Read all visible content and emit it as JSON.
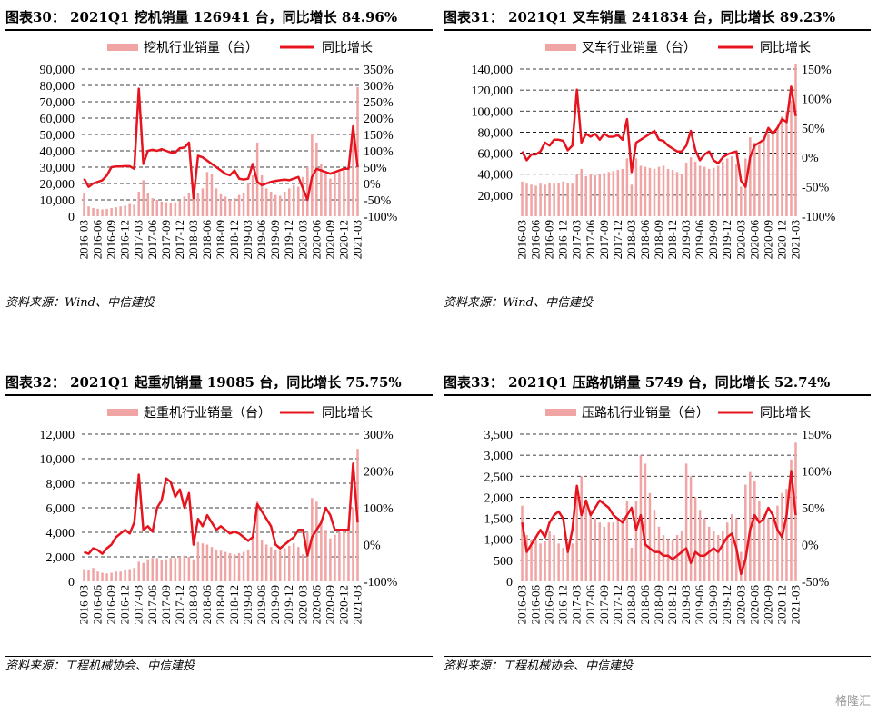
{
  "charts": [
    {
      "title": "图表30： 2021Q1 挖机销量 126941 台，同比增长 84.96%",
      "source": "资料来源：Wind、中信建投",
      "chart_data": {
        "type": "bar-line",
        "left_axis": {
          "min": 0,
          "max": 90000,
          "ticks": [
            "0",
            "10,000",
            "20,000",
            "30,000",
            "40,000",
            "50,000",
            "60,000",
            "70,000",
            "80,000",
            "90,000"
          ]
        },
        "right_axis": {
          "min": -100,
          "max": 350,
          "ticks": [
            "-100%",
            "-50%",
            "0%",
            "50%",
            "100%",
            "150%",
            "200%",
            "250%",
            "300%",
            "350%"
          ]
        },
        "x_labels": [
          "2016-03",
          "2016-06",
          "2016-09",
          "2016-12",
          "2017-03",
          "2017-06",
          "2017-09",
          "2017-12",
          "2018-03",
          "2018-06",
          "2018-09",
          "2018-12",
          "2019-03",
          "2019-06",
          "2019-09",
          "2019-12",
          "2020-03",
          "2020-06",
          "2020-09",
          "2020-12",
          "2021-03"
        ],
        "series": [
          {
            "name": "挖机行业销量（台）",
            "kind": "bar",
            "color": "#f0a4a4",
            "values": [
              14000,
              6000,
              5000,
              4500,
              4200,
              4500,
              5000,
              5500,
              6000,
              6500,
              7500,
              7000,
              15000,
              22000,
              14000,
              11000,
              10000,
              9000,
              8500,
              8000,
              8500,
              9500,
              12000,
              14000,
              15000,
              14000,
              17000,
              27000,
              26000,
              17000,
              13500,
              12000,
              10000,
              11000,
              13000,
              14000,
              20000,
              25000,
              45000,
              25000,
              17000,
              15000,
              13000,
              12500,
              15000,
              17000,
              19000,
              18000,
              24000,
              30000,
              50000,
              45000,
              32000,
              26000,
              23000,
              26000,
              27000,
              28000,
              30000,
              48000,
              79000
            ]
          },
          {
            "name": "同比增长",
            "kind": "line",
            "color": "#e6141e",
            "values": [
              15,
              -10,
              0,
              5,
              10,
              25,
              50,
              52,
              52,
              53,
              53,
              45,
              290,
              60,
              100,
              103,
              100,
              105,
              100,
              95,
              95,
              108,
              110,
              125,
              -45,
              85,
              80,
              70,
              60,
              50,
              40,
              30,
              25,
              40,
              15,
              12,
              15,
              60,
              5,
              -5,
              0,
              5,
              8,
              10,
              12,
              10,
              15,
              20,
              -15,
              -50,
              20,
              45,
              40,
              35,
              30,
              35,
              40,
              45,
              45,
              175,
              50
            ]
          }
        ]
      }
    },
    {
      "title": "图表31： 2021Q1 叉车销量 241834 台，同比增长 89.23%",
      "source": "资料来源：Wind、中信建投",
      "chart_data": {
        "type": "bar-line",
        "left_axis": {
          "min": 0,
          "max": 140000,
          "ticks": [
            "",
            "20,000",
            "40,000",
            "60,000",
            "80,000",
            "100,000",
            "120,000",
            "140,000"
          ]
        },
        "right_axis": {
          "min": -100,
          "max": 150,
          "ticks": [
            "-100%",
            "-50%",
            "0%",
            "50%",
            "100%",
            "150%"
          ]
        },
        "x_labels": [
          "2016-03",
          "2016-06",
          "2016-09",
          "2016-12",
          "2017-03",
          "2017-06",
          "2017-09",
          "2017-12",
          "2018-03",
          "2018-06",
          "2018-09",
          "2018-12",
          "2019-03",
          "2019-06",
          "2019-09",
          "2019-12",
          "2020-03",
          "2020-06",
          "2020-09",
          "2020-12",
          "2021-03"
        ],
        "series": [
          {
            "name": "叉车行业销量（台）",
            "kind": "bar",
            "color": "#f0a4a4",
            "values": [
              33000,
              31000,
              30000,
              29000,
              31000,
              30000,
              32000,
              31000,
              32000,
              33000,
              32000,
              31000,
              40000,
              45000,
              38000,
              40000,
              39000,
              40000,
              41000,
              42000,
              43000,
              44000,
              45000,
              55000,
              30000,
              55000,
              48000,
              47000,
              46000,
              45000,
              47000,
              48000,
              45000,
              44000,
              42000,
              40000,
              51000,
              56000,
              52000,
              48000,
              47000,
              45000,
              46000,
              48000,
              52000,
              55000,
              57000,
              50000,
              28000,
              55000,
              75000,
              70000,
              68000,
              75000,
              78000,
              80000,
              85000,
              95000,
              100000,
              110000,
              145000
            ]
          },
          {
            "name": "同比增长",
            "kind": "line",
            "color": "#e6141e",
            "values": [
              10,
              -5,
              5,
              5,
              10,
              25,
              20,
              30,
              30,
              28,
              12,
              20,
              115,
              25,
              40,
              35,
              40,
              30,
              40,
              35,
              35,
              38,
              30,
              65,
              -25,
              25,
              30,
              35,
              40,
              45,
              30,
              28,
              20,
              15,
              10,
              10,
              20,
              45,
              12,
              -5,
              5,
              10,
              -5,
              -10,
              0,
              5,
              8,
              10,
              -40,
              -50,
              0,
              20,
              25,
              30,
              50,
              40,
              50,
              65,
              60,
              120,
              70
            ]
          }
        ]
      }
    },
    {
      "title": "图表32： 2021Q1 起重机销量 19085 台，同比增长 75.75%",
      "source": "资料来源：工程机械协会、中信建投",
      "chart_data": {
        "type": "bar-line",
        "left_axis": {
          "min": 0,
          "max": 12000,
          "ticks": [
            "0",
            "2,000",
            "4,000",
            "6,000",
            "8,000",
            "10,000",
            "12,000"
          ]
        },
        "right_axis": {
          "min": -100,
          "max": 300,
          "ticks": [
            "-100%",
            "0%",
            "100%",
            "200%",
            "300%"
          ]
        },
        "x_labels": [
          "2016-03",
          "2016-06",
          "2016-09",
          "2016-12",
          "2017-03",
          "2017-06",
          "2017-09",
          "2017-12",
          "2018-03",
          "2018-06",
          "2018-09",
          "2018-12",
          "2019-03",
          "2019-06",
          "2019-09",
          "2019-12",
          "2020-03",
          "2020-06",
          "2020-09",
          "2020-12",
          "2021-03"
        ],
        "series": [
          {
            "name": "起重机行业销量（台）",
            "kind": "bar",
            "color": "#f0a4a4",
            "values": [
              1000,
              900,
              1100,
              800,
              700,
              650,
              700,
              800,
              800,
              900,
              1000,
              1100,
              1600,
              1500,
              1800,
              1900,
              1900,
              1700,
              1800,
              1900,
              1900,
              2000,
              2100,
              2000,
              1800,
              3200,
              3100,
              3000,
              2800,
              2600,
              2500,
              2400,
              2300,
              2200,
              2300,
              2400,
              2600,
              3500,
              6500,
              3400,
              3000,
              2800,
              2600,
              2500,
              2700,
              2900,
              3100,
              2800,
              2200,
              4000,
              6800,
              6500,
              5000,
              4200,
              3500,
              3800,
              4000,
              4200,
              4400,
              6000,
              10800
            ]
          },
          {
            "name": "同比增长",
            "kind": "line",
            "color": "#e6141e",
            "values": [
              -20,
              -25,
              -10,
              -15,
              -25,
              -10,
              0,
              20,
              30,
              40,
              30,
              60,
              190,
              40,
              50,
              35,
              100,
              120,
              180,
              170,
              130,
              150,
              100,
              140,
              0,
              70,
              50,
              80,
              60,
              40,
              50,
              40,
              30,
              35,
              30,
              20,
              10,
              20,
              110,
              90,
              70,
              50,
              0,
              -10,
              0,
              10,
              20,
              40,
              40,
              -30,
              20,
              40,
              60,
              100,
              80,
              40,
              40,
              40,
              40,
              220,
              60
            ]
          }
        ]
      }
    },
    {
      "title": "图表33： 2021Q1 压路机销量 5749 台，同比增长 52.74%",
      "source": "资料来源：工程机械协会、中信建投",
      "chart_data": {
        "type": "bar-line",
        "left_axis": {
          "min": 0,
          "max": 3500,
          "ticks": [
            "0",
            "500",
            "1,000",
            "1,500",
            "2,000",
            "2,500",
            "3,000",
            "3,500"
          ]
        },
        "right_axis": {
          "min": -50,
          "max": 150,
          "ticks": [
            "-50%",
            "0%",
            "50%",
            "100%",
            "150%"
          ]
        },
        "x_labels": [
          "2016-03",
          "2016-06",
          "2016-09",
          "2016-12",
          "2017-03",
          "2017-06",
          "2017-09",
          "2017-12",
          "2018-03",
          "2018-06",
          "2018-09",
          "2018-12",
          "2019-03",
          "2019-06",
          "2019-09",
          "2019-12",
          "2020-03",
          "2020-06",
          "2020-09",
          "2020-12",
          "2021-03"
        ],
        "series": [
          {
            "name": "压路机行业销量（台）",
            "kind": "bar",
            "color": "#f0a4a4",
            "values": [
              1800,
              1100,
              1000,
              1000,
              900,
              950,
              1200,
              1100,
              900,
              800,
              700,
              900,
              2000,
              2500,
              1900,
              1700,
              1500,
              1400,
              1300,
              1400,
              1400,
              1500,
              1500,
              1900,
              800,
              1900,
              3000,
              2800,
              2100,
              1700,
              1300,
              1100,
              1000,
              1000,
              1100,
              1200,
              2800,
              2500,
              2000,
              1700,
              1500,
              1300,
              1200,
              1100,
              1200,
              1400,
              1600,
              1500,
              700,
              2300,
              2600,
              2400,
              1900,
              1600,
              1500,
              1600,
              1800,
              2100,
              2200,
              2900,
              3300
            ]
          },
          {
            "name": "同比增长",
            "kind": "line",
            "color": "#e6141e",
            "values": [
              30,
              -10,
              0,
              10,
              20,
              10,
              30,
              40,
              45,
              35,
              -10,
              20,
              80,
              40,
              60,
              40,
              50,
              60,
              55,
              50,
              40,
              35,
              30,
              40,
              50,
              20,
              40,
              0,
              -5,
              -10,
              -10,
              -15,
              -15,
              -20,
              -15,
              -10,
              -5,
              -25,
              -10,
              -15,
              -15,
              -10,
              -5,
              -10,
              0,
              10,
              15,
              -5,
              -40,
              -20,
              20,
              40,
              30,
              35,
              50,
              40,
              20,
              10,
              40,
              100,
              40
            ]
          }
        ]
      }
    }
  ],
  "watermark": "格隆汇"
}
